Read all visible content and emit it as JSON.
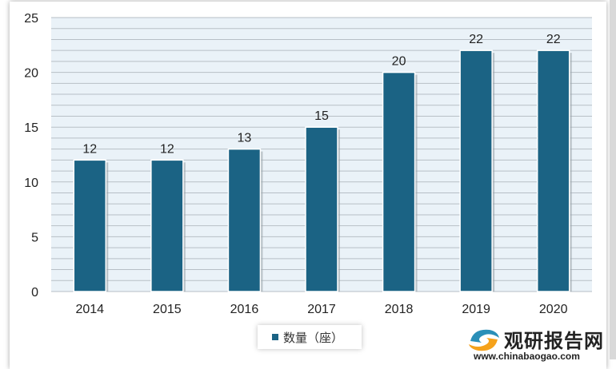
{
  "chart_data": {
    "type": "bar",
    "categories": [
      "2014",
      "2015",
      "2016",
      "2017",
      "2018",
      "2019",
      "2020"
    ],
    "series": [
      {
        "name": "数量（座）",
        "values": [
          12,
          12,
          13,
          15,
          20,
          22,
          22
        ]
      }
    ],
    "ylim": [
      0,
      25
    ],
    "yticks": [
      0,
      5,
      10,
      15,
      20,
      25
    ],
    "grid": true,
    "legend": "bottom",
    "colors": {
      "bar": "#1b6384",
      "plot_bg": "#eaf2f8",
      "grid": "#b7bfc6"
    }
  },
  "watermark": {
    "brand": "观研报告网",
    "url": "www.chinabaogao.com"
  }
}
